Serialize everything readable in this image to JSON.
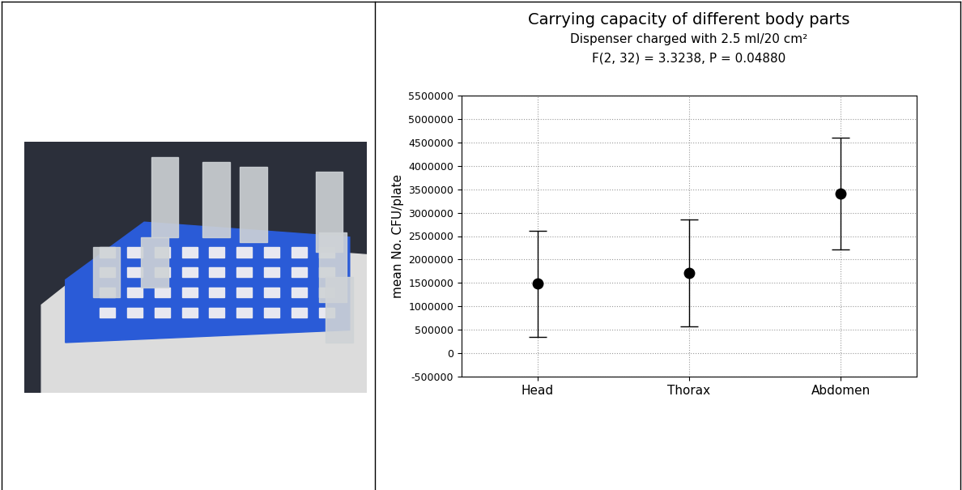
{
  "chart_data": {
    "type": "scatter",
    "title": "Carrying capacity of different body parts",
    "subtitle": "Dispenser charged with 2.5 ml/20 cm²",
    "annotations": [
      "F(2, 32) = 3.3238, P = 0.04880"
    ],
    "y_label": "mean No. CFU/plate",
    "categories": [
      "Head",
      "Thorax",
      "Abdomen"
    ],
    "values": [
      1480000,
      1720000,
      3400000
    ],
    "lower": [
      350000,
      580000,
      2220000
    ],
    "upper": [
      2620000,
      2850000,
      4600000
    ],
    "color": "#000000",
    "marker": "circle",
    "ylim": [
      -500000,
      5500000
    ],
    "yticks": [
      -500000,
      0,
      500000,
      1000000,
      1500000,
      2000000,
      2500000,
      3000000,
      3500000,
      4000000,
      4500000,
      5000000,
      5500000
    ],
    "grid": true
  }
}
